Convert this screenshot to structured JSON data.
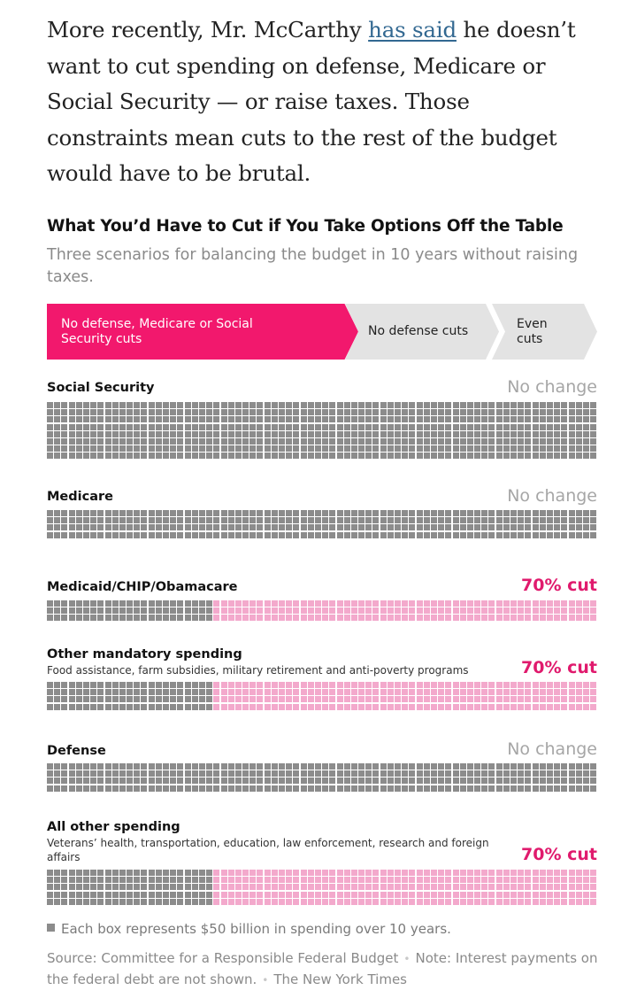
{
  "article": {
    "intro_before_link": "More recently, Mr. McCarthy ",
    "intro_link": "has said",
    "intro_after_link": " he doesn’t want to cut spending on defense, Medicare or Social Security — or raise taxes. Those constraints mean cuts to the rest of the budget would have to be brutal."
  },
  "chart_data": {
    "type": "waffle",
    "title": "What You’d Have to Cut if You Take Options Off the Table",
    "subtitle": "Three scenarios for balancing the budget in 10 years without raising taxes.",
    "scenarios": [
      {
        "label": "No defense, Medicare or Social Security cuts",
        "selected": true
      },
      {
        "label": "No defense cuts",
        "selected": false
      },
      {
        "label": "Even cuts",
        "selected": false
      }
    ],
    "unit_per_box": "$50 billion",
    "categories": [
      {
        "name": "Social Security",
        "description": "",
        "status": "No change",
        "cut_percent": 0,
        "box_rows": 8
      },
      {
        "name": "Medicare",
        "description": "",
        "status": "No change",
        "cut_percent": 0,
        "box_rows": 4
      },
      {
        "name": "Medicaid/CHIP/Obamacare",
        "description": "",
        "status": "70% cut",
        "cut_percent": 70,
        "box_rows": 3
      },
      {
        "name": "Other mandatory spending",
        "description": "Food assistance, farm subsidies, military retirement and anti-poverty programs",
        "status": "70% cut",
        "cut_percent": 70,
        "box_rows": 4
      },
      {
        "name": "Defense",
        "description": "",
        "status": "No change",
        "cut_percent": 0,
        "box_rows": 4
      },
      {
        "name": "All other spending",
        "description": "Veterans’ health, transportation, education, law enforcement, research and foreign affairs",
        "status": "70% cut",
        "cut_percent": 70,
        "box_rows": 5
      }
    ],
    "colors": {
      "kept": "#8c8c8c",
      "cut": "#f3a9cc",
      "accent": "#f2186d"
    }
  },
  "footer": {
    "legend": "Each box represents $50 billion in spending over 10 years.",
    "source": "Source: Committee for a Responsible Federal Budget",
    "note": "Note: Interest payments on the federal debt are not shown.",
    "credit": "The New York Times"
  }
}
